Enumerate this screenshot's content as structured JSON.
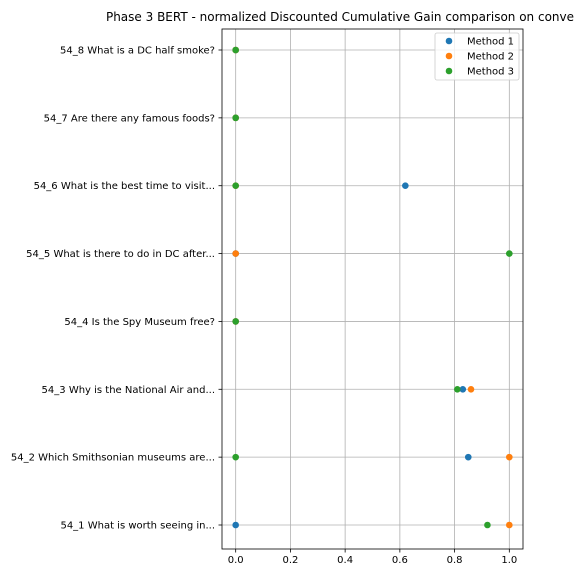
{
  "chart_data": {
    "type": "scatter",
    "title": "Phase 3 BERT - normalized Discounted Cumulative Gain comparison on conve",
    "xlabel": "",
    "ylabel": "",
    "xlim": [
      -0.05,
      1.05
    ],
    "xticks": [
      0.0,
      0.2,
      0.4,
      0.6,
      0.8,
      1.0
    ],
    "xtick_labels": [
      "0.0",
      "0.2",
      "0.4",
      "0.6",
      "0.8",
      "1.0"
    ],
    "grid": true,
    "legend_position": "upper right",
    "categories": [
      "54_1 What is worth seeing in...",
      "54_2 Which Smithsonian museums are...",
      "54_3 Why is the National Air and...",
      "54_4 Is the Spy Museum free?",
      "54_5 What is there to do in DC after...",
      "54_6 What is the best time to visit...",
      "54_7 Are there any famous foods?",
      "54_8 What is a DC half smoke?"
    ],
    "series": [
      {
        "name": "Method 1",
        "color": "#1f77b4",
        "values": [
          0.0,
          0.85,
          0.83,
          0.0,
          0.0,
          0.62,
          0.0,
          0.0
        ]
      },
      {
        "name": "Method 2",
        "color": "#ff7f0e",
        "values": [
          1.0,
          1.0,
          0.86,
          0.0,
          0.0,
          0.0,
          0.0,
          0.0
        ]
      },
      {
        "name": "Method 3",
        "color": "#2ca02c",
        "values": [
          0.92,
          0.0,
          0.81,
          0.0,
          1.0,
          0.0,
          0.0,
          0.0
        ]
      }
    ]
  }
}
